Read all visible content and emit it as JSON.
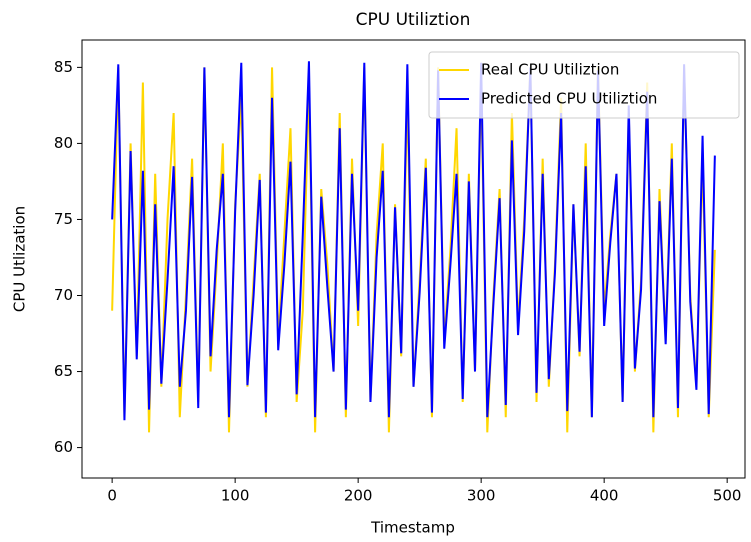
{
  "chart_data": {
    "type": "line",
    "title": "CPU Utiliztion",
    "xlabel": "Timestamp",
    "ylabel": "CPU Utlization",
    "x": [
      0,
      5,
      10,
      15,
      20,
      25,
      30,
      35,
      40,
      45,
      50,
      55,
      60,
      65,
      70,
      75,
      80,
      85,
      90,
      95,
      100,
      105,
      110,
      115,
      120,
      125,
      130,
      135,
      140,
      145,
      150,
      155,
      160,
      165,
      170,
      175,
      180,
      185,
      190,
      195,
      200,
      205,
      210,
      215,
      220,
      225,
      230,
      235,
      240,
      245,
      250,
      255,
      260,
      265,
      270,
      275,
      280,
      285,
      290,
      295,
      300,
      305,
      310,
      315,
      320,
      325,
      330,
      335,
      340,
      345,
      350,
      355,
      360,
      365,
      370,
      375,
      380,
      385,
      390,
      395,
      400,
      405,
      410,
      415,
      420,
      425,
      430,
      435,
      440,
      445,
      450,
      455,
      460,
      465,
      470,
      475,
      480,
      485,
      490
    ],
    "series": [
      {
        "name": "Real CPU Utiliztion",
        "color": "#ffd700",
        "values": [
          69,
          85,
          62,
          80,
          66,
          84,
          61,
          78,
          64,
          75,
          82,
          62,
          70,
          79,
          63,
          85,
          65,
          72,
          80,
          61,
          76,
          83,
          64,
          71,
          78,
          62,
          85,
          67,
          74,
          81,
          63,
          69,
          84,
          61,
          77,
          72,
          65,
          82,
          62,
          79,
          68,
          85,
          63,
          74,
          80,
          61,
          76,
          66,
          83,
          64,
          71,
          79,
          62,
          85,
          67,
          73,
          81,
          63,
          78,
          65,
          84,
          61,
          70,
          77,
          62,
          82,
          68,
          75,
          85,
          63,
          79,
          64,
          72,
          83,
          61,
          76,
          66,
          80,
          62,
          85,
          69,
          74,
          78,
          63,
          82,
          65,
          71,
          84,
          61,
          77,
          67,
          80,
          62,
          85,
          70,
          64,
          79,
          62,
          73
        ]
      },
      {
        "name": "Predicted CPU Utiliztion",
        "color": "#0000ff",
        "values": [
          75,
          85.2,
          61.8,
          79.5,
          65.8,
          78.2,
          62.5,
          76,
          64.2,
          71,
          78.5,
          64,
          69,
          77.8,
          62.6,
          85,
          66,
          73,
          78,
          62,
          75.5,
          85.3,
          64.1,
          70,
          77.6,
          62.3,
          83,
          66.4,
          72,
          78.8,
          63.5,
          74,
          85.4,
          62,
          76.5,
          70.5,
          65,
          81,
          62.5,
          78,
          69,
          85.3,
          63,
          72.5,
          78.2,
          62,
          75.8,
          66.2,
          85.2,
          64,
          70.2,
          78.4,
          62.3,
          84.8,
          66.5,
          72,
          78,
          63.2,
          77.5,
          65,
          85.3,
          62,
          69.5,
          76.4,
          62.8,
          80.2,
          67.4,
          74.2,
          85,
          63.6,
          78,
          64.5,
          71.5,
          82,
          62.4,
          76,
          66.3,
          78.5,
          62,
          84.8,
          68,
          73.5,
          78,
          63,
          82.5,
          65.2,
          70.4,
          83.4,
          62,
          76.2,
          66.8,
          79,
          62.6,
          85.2,
          69.6,
          63.8,
          80.5,
          62.2,
          79.2
        ]
      }
    ],
    "xlim": [
      -24.5,
      514.5
    ],
    "xticks": [
      0,
      100,
      200,
      300,
      400,
      500
    ],
    "ylim": [
      58.0,
      86.8
    ],
    "yticks": [
      60,
      65,
      70,
      75,
      80,
      85
    ],
    "legend": "upper right"
  }
}
